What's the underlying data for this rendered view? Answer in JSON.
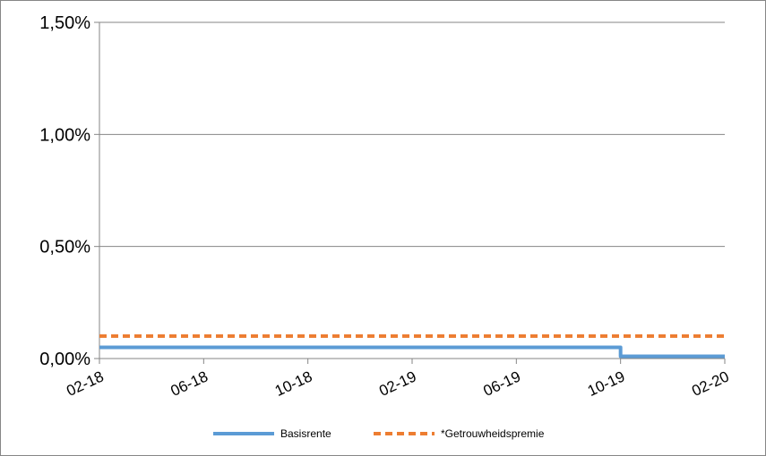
{
  "chart_data": {
    "type": "line",
    "y_ticks": [
      "0,00%",
      "0,50%",
      "1,00%",
      "1,50%"
    ],
    "y_tick_values": [
      0,
      0.5,
      1.0,
      1.5
    ],
    "ylim": [
      0,
      1.5
    ],
    "x_ticks": [
      "02-18",
      "06-18",
      "10-18",
      "02-19",
      "06-19",
      "10-19",
      "02-20"
    ],
    "xlim": [
      "2018-02",
      "2020-02"
    ],
    "grid": true,
    "legend_position": "bottom",
    "series": [
      {
        "name": "Basisrente",
        "style": "solid",
        "color": "#5B9BD5",
        "x": [
          "2018-02",
          "2019-10",
          "2019-10",
          "2020-02"
        ],
        "values": [
          0.05,
          0.05,
          0.01,
          0.01
        ]
      },
      {
        "name": "*Getrouwheidspremie",
        "style": "dashed",
        "color": "#ED7D31",
        "x": [
          "2018-02",
          "2020-02"
        ],
        "values": [
          0.1,
          0.1
        ]
      }
    ]
  }
}
